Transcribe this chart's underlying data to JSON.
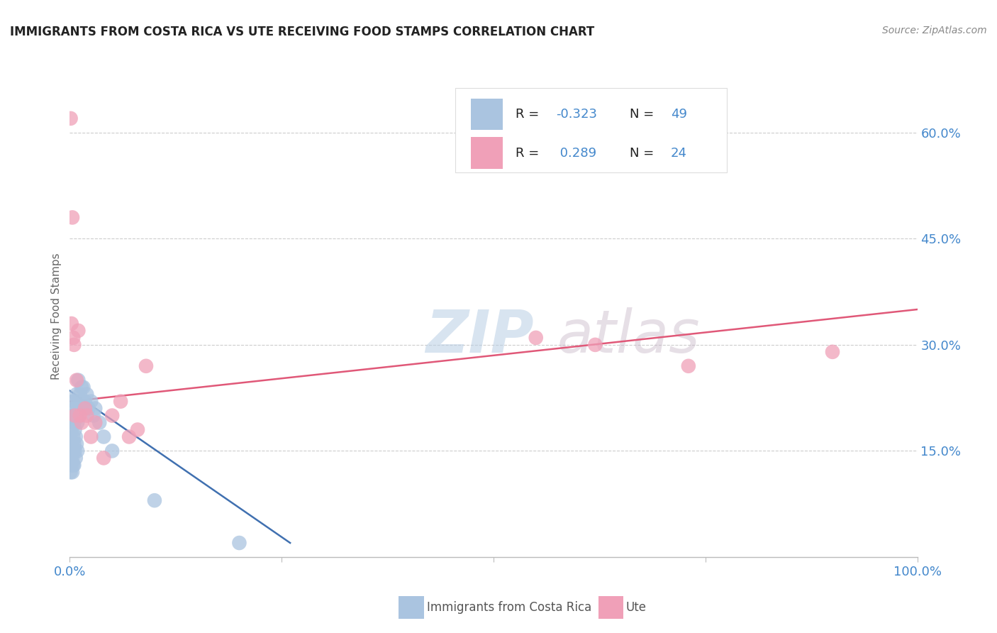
{
  "title": "IMMIGRANTS FROM COSTA RICA VS UTE RECEIVING FOOD STAMPS CORRELATION CHART",
  "source": "Source: ZipAtlas.com",
  "ylabel": "Receiving Food Stamps",
  "legend_label1": "Immigrants from Costa Rica",
  "legend_label2": "Ute",
  "r1": -0.323,
  "n1": 49,
  "r2": 0.289,
  "n2": 24,
  "blue_color": "#aac4e0",
  "pink_color": "#f0a0b8",
  "blue_line_color": "#4070b0",
  "pink_line_color": "#e05878",
  "watermark_color": "#d0dff0",
  "background_color": "#ffffff",
  "grid_color": "#cccccc",
  "ytick_labels": [
    "15.0%",
    "30.0%",
    "45.0%",
    "60.0%"
  ],
  "ytick_values": [
    0.15,
    0.3,
    0.45,
    0.6
  ],
  "xlim": [
    0.0,
    1.0
  ],
  "ylim": [
    0.0,
    0.68
  ],
  "blue_dots_x": [
    0.001,
    0.001,
    0.001,
    0.002,
    0.002,
    0.002,
    0.002,
    0.003,
    0.003,
    0.003,
    0.003,
    0.003,
    0.004,
    0.004,
    0.004,
    0.004,
    0.005,
    0.005,
    0.005,
    0.005,
    0.006,
    0.006,
    0.006,
    0.007,
    0.007,
    0.007,
    0.008,
    0.008,
    0.009,
    0.009,
    0.01,
    0.01,
    0.011,
    0.012,
    0.013,
    0.014,
    0.015,
    0.016,
    0.018,
    0.02,
    0.022,
    0.025,
    0.028,
    0.03,
    0.035,
    0.04,
    0.05,
    0.1,
    0.2
  ],
  "blue_dots_y": [
    0.14,
    0.16,
    0.12,
    0.15,
    0.18,
    0.2,
    0.13,
    0.16,
    0.19,
    0.22,
    0.14,
    0.12,
    0.17,
    0.13,
    0.2,
    0.15,
    0.16,
    0.19,
    0.22,
    0.13,
    0.18,
    0.15,
    0.21,
    0.17,
    0.14,
    0.2,
    0.16,
    0.23,
    0.15,
    0.19,
    0.22,
    0.25,
    0.2,
    0.23,
    0.21,
    0.24,
    0.22,
    0.24,
    0.22,
    0.23,
    0.21,
    0.22,
    0.2,
    0.21,
    0.19,
    0.17,
    0.15,
    0.08,
    0.02
  ],
  "pink_dots_x": [
    0.001,
    0.002,
    0.003,
    0.004,
    0.005,
    0.006,
    0.008,
    0.01,
    0.012,
    0.014,
    0.018,
    0.02,
    0.025,
    0.03,
    0.04,
    0.05,
    0.06,
    0.07,
    0.08,
    0.09,
    0.55,
    0.62,
    0.73,
    0.9
  ],
  "pink_dots_y": [
    0.62,
    0.33,
    0.48,
    0.31,
    0.3,
    0.2,
    0.25,
    0.32,
    0.2,
    0.19,
    0.21,
    0.2,
    0.17,
    0.19,
    0.14,
    0.2,
    0.22,
    0.17,
    0.18,
    0.27,
    0.31,
    0.3,
    0.27,
    0.29
  ],
  "blue_line_x": [
    0.0,
    0.26
  ],
  "blue_line_y_start": 0.235,
  "blue_line_y_end": 0.02,
  "pink_line_x": [
    0.0,
    1.0
  ],
  "pink_line_y_start": 0.22,
  "pink_line_y_end": 0.35
}
